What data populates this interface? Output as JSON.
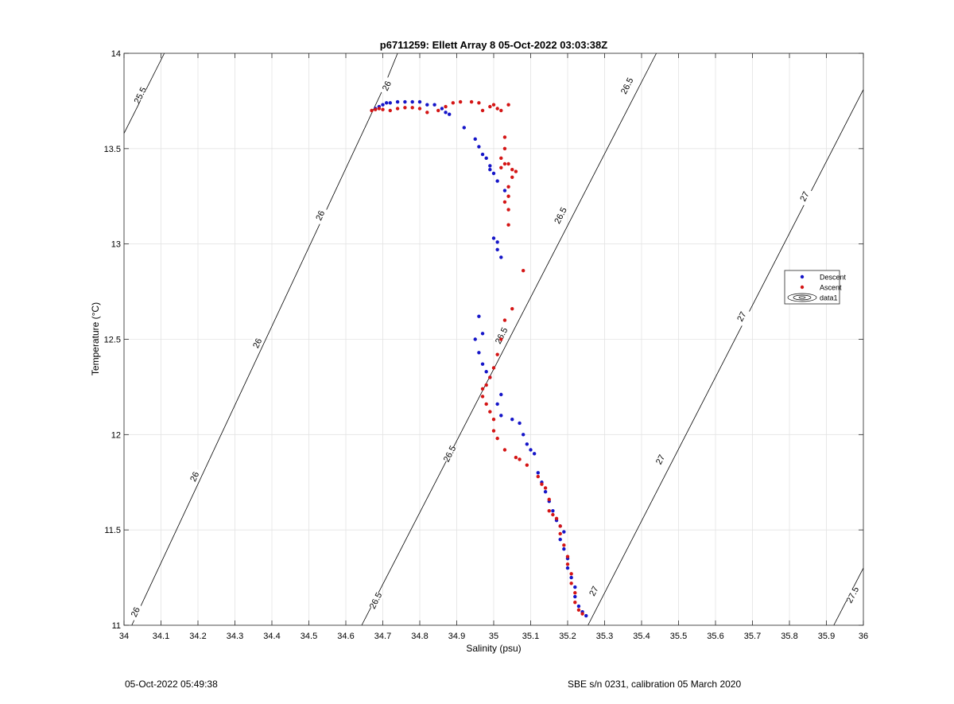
{
  "chart_data": {
    "type": "scatter",
    "title": "p6711259: Ellett Array 8 05-Oct-2022 03:03:38Z",
    "xlabel": "Salinity (psu)",
    "ylabel": "Temperature (°C)",
    "xlim": [
      34,
      36
    ],
    "ylim": [
      11,
      14
    ],
    "xticks": [
      34,
      34.1,
      34.2,
      34.3,
      34.4,
      34.5,
      34.6,
      34.7,
      34.8,
      34.9,
      35,
      35.1,
      35.2,
      35.3,
      35.4,
      35.5,
      35.6,
      35.7,
      35.8,
      35.9,
      36
    ],
    "xtick_labels": [
      "34",
      "34.1",
      "34.2",
      "34.3",
      "34.4",
      "34.5",
      "34.6",
      "34.7",
      "34.8",
      "34.9",
      "35",
      "35.1",
      "35.2",
      "35.3",
      "35.4",
      "35.5",
      "35.6",
      "35.7",
      "35.8",
      "35.9",
      "36"
    ],
    "yticks": [
      11,
      11.5,
      12,
      12.5,
      13,
      13.5,
      14
    ],
    "ytick_labels": [
      "11",
      "11.5",
      "12",
      "12.5",
      "13",
      "13.5",
      "14"
    ],
    "grid": true,
    "legend_position": "right",
    "series": [
      {
        "name": "Descent",
        "color": "#1515c8",
        "marker": "dot",
        "points": [
          [
            34.68,
            13.71
          ],
          [
            34.69,
            13.72
          ],
          [
            34.7,
            13.73
          ],
          [
            34.71,
            13.74
          ],
          [
            34.72,
            13.74
          ],
          [
            34.74,
            13.745
          ],
          [
            34.76,
            13.745
          ],
          [
            34.78,
            13.745
          ],
          [
            34.8,
            13.745
          ],
          [
            34.82,
            13.73
          ],
          [
            34.84,
            13.73
          ],
          [
            34.86,
            13.71
          ],
          [
            34.87,
            13.69
          ],
          [
            34.88,
            13.68
          ],
          [
            34.92,
            13.61
          ],
          [
            34.95,
            13.55
          ],
          [
            34.96,
            13.51
          ],
          [
            34.97,
            13.47
          ],
          [
            34.98,
            13.45
          ],
          [
            34.99,
            13.41
          ],
          [
            34.99,
            13.39
          ],
          [
            35.0,
            13.37
          ],
          [
            35.01,
            13.33
          ],
          [
            35.03,
            13.28
          ],
          [
            35.0,
            13.03
          ],
          [
            35.01,
            13.01
          ],
          [
            35.01,
            12.97
          ],
          [
            35.02,
            12.93
          ],
          [
            34.96,
            12.62
          ],
          [
            34.97,
            12.53
          ],
          [
            34.95,
            12.5
          ],
          [
            34.96,
            12.43
          ],
          [
            34.97,
            12.37
          ],
          [
            34.98,
            12.33
          ],
          [
            34.99,
            12.3
          ],
          [
            35.02,
            12.21
          ],
          [
            35.01,
            12.16
          ],
          [
            35.02,
            12.1
          ],
          [
            35.05,
            12.08
          ],
          [
            35.07,
            12.06
          ],
          [
            35.08,
            12.0
          ],
          [
            35.09,
            11.95
          ],
          [
            35.1,
            11.92
          ],
          [
            35.11,
            11.9
          ],
          [
            35.12,
            11.8
          ],
          [
            35.13,
            11.75
          ],
          [
            35.14,
            11.7
          ],
          [
            35.15,
            11.65
          ],
          [
            35.16,
            11.6
          ],
          [
            35.17,
            11.55
          ],
          [
            35.18,
            11.52
          ],
          [
            35.19,
            11.49
          ],
          [
            35.18,
            11.45
          ],
          [
            35.19,
            11.4
          ],
          [
            35.2,
            11.35
          ],
          [
            35.2,
            11.3
          ],
          [
            35.21,
            11.25
          ],
          [
            35.22,
            11.2
          ],
          [
            35.22,
            11.15
          ],
          [
            35.23,
            11.1
          ],
          [
            35.24,
            11.07
          ],
          [
            35.25,
            11.05
          ]
        ]
      },
      {
        "name": "Ascent",
        "color": "#d41515",
        "marker": "dot",
        "points": [
          [
            34.67,
            13.7
          ],
          [
            34.68,
            13.705
          ],
          [
            34.69,
            13.71
          ],
          [
            34.7,
            13.705
          ],
          [
            34.72,
            13.7
          ],
          [
            34.74,
            13.71
          ],
          [
            34.76,
            13.715
          ],
          [
            34.78,
            13.715
          ],
          [
            34.8,
            13.71
          ],
          [
            34.82,
            13.69
          ],
          [
            34.85,
            13.7
          ],
          [
            34.87,
            13.72
          ],
          [
            34.89,
            13.74
          ],
          [
            34.91,
            13.745
          ],
          [
            34.94,
            13.745
          ],
          [
            34.96,
            13.74
          ],
          [
            34.97,
            13.7
          ],
          [
            34.99,
            13.72
          ],
          [
            35.0,
            13.73
          ],
          [
            35.01,
            13.71
          ],
          [
            35.02,
            13.7
          ],
          [
            35.04,
            13.73
          ],
          [
            35.03,
            13.56
          ],
          [
            35.03,
            13.5
          ],
          [
            35.02,
            13.45
          ],
          [
            35.03,
            13.42
          ],
          [
            35.02,
            13.4
          ],
          [
            35.04,
            13.42
          ],
          [
            35.05,
            13.39
          ],
          [
            35.06,
            13.38
          ],
          [
            35.05,
            13.35
          ],
          [
            35.04,
            13.3
          ],
          [
            35.04,
            13.25
          ],
          [
            35.03,
            13.22
          ],
          [
            35.04,
            13.18
          ],
          [
            35.04,
            13.1
          ],
          [
            35.08,
            12.86
          ],
          [
            35.05,
            12.66
          ],
          [
            35.03,
            12.6
          ],
          [
            35.02,
            12.5
          ],
          [
            35.01,
            12.42
          ],
          [
            35.0,
            12.35
          ],
          [
            34.99,
            12.3
          ],
          [
            34.98,
            12.26
          ],
          [
            34.97,
            12.24
          ],
          [
            34.97,
            12.2
          ],
          [
            34.98,
            12.16
          ],
          [
            34.99,
            12.12
          ],
          [
            35.0,
            12.08
          ],
          [
            35.0,
            12.02
          ],
          [
            35.01,
            11.98
          ],
          [
            35.03,
            11.92
          ],
          [
            35.06,
            11.88
          ],
          [
            35.07,
            11.87
          ],
          [
            35.09,
            11.84
          ],
          [
            35.12,
            11.78
          ],
          [
            35.13,
            11.74
          ],
          [
            35.14,
            11.72
          ],
          [
            35.15,
            11.66
          ],
          [
            35.15,
            11.6
          ],
          [
            35.16,
            11.58
          ],
          [
            35.17,
            11.56
          ],
          [
            35.18,
            11.52
          ],
          [
            35.18,
            11.48
          ],
          [
            35.19,
            11.42
          ],
          [
            35.2,
            11.36
          ],
          [
            35.2,
            11.32
          ],
          [
            35.21,
            11.27
          ],
          [
            35.21,
            11.22
          ],
          [
            35.22,
            11.17
          ],
          [
            35.22,
            11.12
          ],
          [
            35.23,
            11.08
          ],
          [
            35.24,
            11.06
          ]
        ]
      },
      {
        "name": "data1",
        "type": "contour",
        "color": "#000000",
        "lines": [
          {
            "label": "25.5",
            "points": [
              [
                34.0,
                13.58
              ],
              [
                34.109,
                14.0
              ]
            ],
            "labels": [
              [
                34.043,
                13.78
              ]
            ]
          },
          {
            "label": "26",
            "points": [
              [
                34.021,
                11.0
              ],
              [
                34.7,
                13.81
              ],
              [
                34.74,
                14.0
              ]
            ],
            "labels": [
              [
                34.03,
                11.07
              ],
              [
                34.19,
                11.78
              ],
              [
                34.36,
                12.48
              ],
              [
                34.53,
                13.15
              ],
              [
                34.71,
                13.83
              ]
            ]
          },
          {
            "label": "26.5",
            "points": [
              [
                34.643,
                11.0
              ],
              [
                35.44,
                14.0
              ]
            ],
            "labels": [
              [
                34.68,
                11.13
              ],
              [
                34.88,
                11.9
              ],
              [
                35.02,
                12.52
              ],
              [
                35.18,
                13.15
              ],
              [
                35.36,
                13.83
              ]
            ]
          },
          {
            "label": "27",
            "points": [
              [
                35.255,
                11.0
              ],
              [
                36.0,
                13.81
              ]
            ],
            "labels": [
              [
                35.27,
                11.18
              ],
              [
                35.45,
                11.87
              ],
              [
                35.67,
                12.62
              ],
              [
                35.84,
                13.25
              ]
            ]
          },
          {
            "label": "27.5",
            "points": [
              [
                35.92,
                11.0
              ],
              [
                36.0,
                11.3
              ]
            ],
            "labels": [
              [
                35.97,
                11.16
              ]
            ]
          }
        ]
      }
    ]
  },
  "footer": {
    "left": "05-Oct-2022 05:49:38",
    "right": "SBE s/n 0231, calibration 05 March 2020"
  }
}
